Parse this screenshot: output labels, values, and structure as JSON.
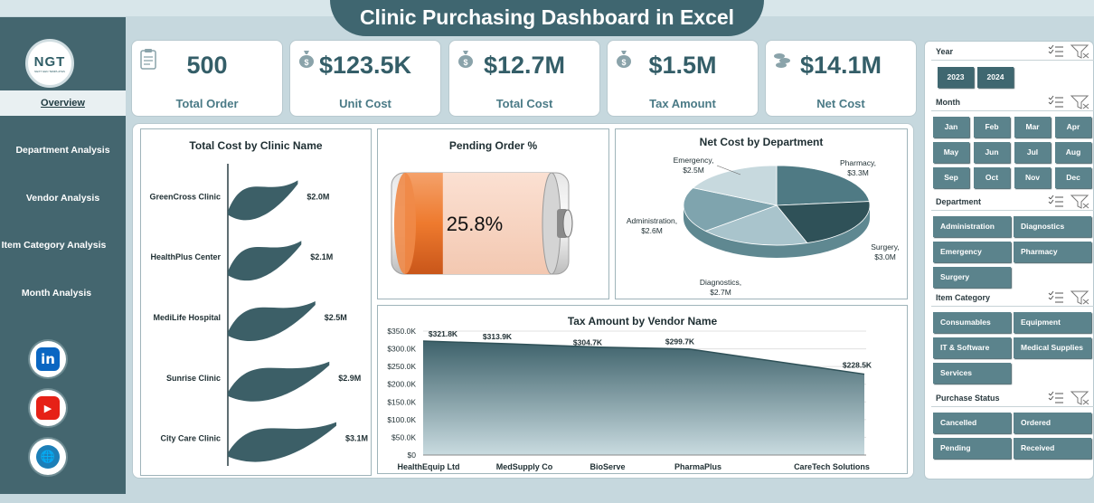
{
  "title": "Clinic Purchasing Dashboard in Excel",
  "logo": {
    "text": "NGT",
    "sub": "NEXT GEN TEMPLATES"
  },
  "nav": [
    {
      "label": "Overview",
      "active": true
    },
    {
      "label": "Department Analysis"
    },
    {
      "label": "Vendor Analysis"
    },
    {
      "label": "Item Category Analysis"
    },
    {
      "label": "Month Analysis"
    }
  ],
  "social": [
    {
      "icon": "linkedin-icon",
      "glyph": "in",
      "color": "#0a66c2"
    },
    {
      "icon": "youtube-icon",
      "glyph": "▶",
      "color": "#e62117"
    },
    {
      "icon": "globe-icon",
      "glyph": "🌐",
      "color": "#1c7fb8"
    }
  ],
  "kpis": [
    {
      "value": "500",
      "label": "Total Order",
      "icon": "clipboard-icon"
    },
    {
      "value": "$123.5K",
      "label": "Unit Cost",
      "icon": "money-bag-icon"
    },
    {
      "value": "$12.7M",
      "label": "Total Cost",
      "icon": "money-bag-icon"
    },
    {
      "value": "$1.5M",
      "label": "Tax Amount",
      "icon": "money-bag-icon"
    },
    {
      "value": "$14.1M",
      "label": "Net Cost",
      "icon": "coins-icon"
    }
  ],
  "chart_data": [
    {
      "type": "bar",
      "title": "Total Cost by Clinic Name",
      "categories": [
        "GreenCross Clinic",
        "HealthPlus Center",
        "MediLife Hospital",
        "Sunrise Clinic",
        "City Care Clinic"
      ],
      "values": [
        2.0,
        2.1,
        2.5,
        2.9,
        3.1
      ],
      "data_labels": [
        "$2.0M",
        "$2.1M",
        "$2.5M",
        "$2.9M",
        "$3.1M"
      ],
      "unit": "$M",
      "color": "#3c5f67"
    },
    {
      "type": "gauge",
      "title": "Pending Order %",
      "value": 25.8,
      "label": "25.8%"
    },
    {
      "type": "pie",
      "title": "Net Cost by Department",
      "categories": [
        "Pharmacy",
        "Surgery",
        "Diagnostics",
        "Administration",
        "Emergency"
      ],
      "values": [
        3.3,
        3.0,
        2.7,
        2.6,
        2.5
      ],
      "data_labels": [
        "$3.3M",
        "$3.0M",
        "$2.7M",
        "$2.6M",
        "$2.5M"
      ],
      "colors": [
        "#4f7a84",
        "#2f5158",
        "#a9c4cc",
        "#7fa4ae",
        "#c7d9de"
      ]
    },
    {
      "type": "area",
      "title": "Tax Amount by Vendor Name",
      "categories": [
        "HealthEquip Ltd",
        "MedSupply Co",
        "BioServe",
        "PharmaPlus",
        "CareTech Solutions"
      ],
      "values": [
        321.8,
        313.9,
        304.7,
        299.7,
        228.5
      ],
      "data_labels": [
        "$321.8K",
        "$313.9K",
        "$304.7K",
        "$299.7K",
        "$228.5K"
      ],
      "ylim": [
        0,
        350
      ],
      "yticks": [
        "$0",
        "$50.0K",
        "$100.0K",
        "$150.0K",
        "$200.0K",
        "$250.0K",
        "$300.0K",
        "$350.0K"
      ],
      "grid": true
    }
  ],
  "slicers": [
    {
      "title": "Year",
      "items": [
        {
          "label": "2023",
          "selected": true
        },
        {
          "label": "2024",
          "selected": true
        }
      ]
    },
    {
      "title": "Month",
      "items": [
        {
          "label": "Jan"
        },
        {
          "label": "Feb"
        },
        {
          "label": "Mar"
        },
        {
          "label": "Apr"
        },
        {
          "label": "May"
        },
        {
          "label": "Jun"
        },
        {
          "label": "Jul"
        },
        {
          "label": "Aug"
        },
        {
          "label": "Sep"
        },
        {
          "label": "Oct"
        },
        {
          "label": "Nov"
        },
        {
          "label": "Dec"
        }
      ]
    },
    {
      "title": "Department",
      "items": [
        {
          "label": "Administration"
        },
        {
          "label": "Diagnostics"
        },
        {
          "label": "Emergency"
        },
        {
          "label": "Pharmacy"
        },
        {
          "label": "Surgery"
        }
      ]
    },
    {
      "title": "Item Category",
      "items": [
        {
          "label": "Consumables"
        },
        {
          "label": "Equipment"
        },
        {
          "label": "IT & Software"
        },
        {
          "label": "Medical Supplies"
        },
        {
          "label": "Services"
        }
      ]
    },
    {
      "title": "Purchase Status",
      "items": [
        {
          "label": "Cancelled"
        },
        {
          "label": "Ordered"
        },
        {
          "label": "Pending"
        },
        {
          "label": "Received"
        }
      ]
    }
  ]
}
